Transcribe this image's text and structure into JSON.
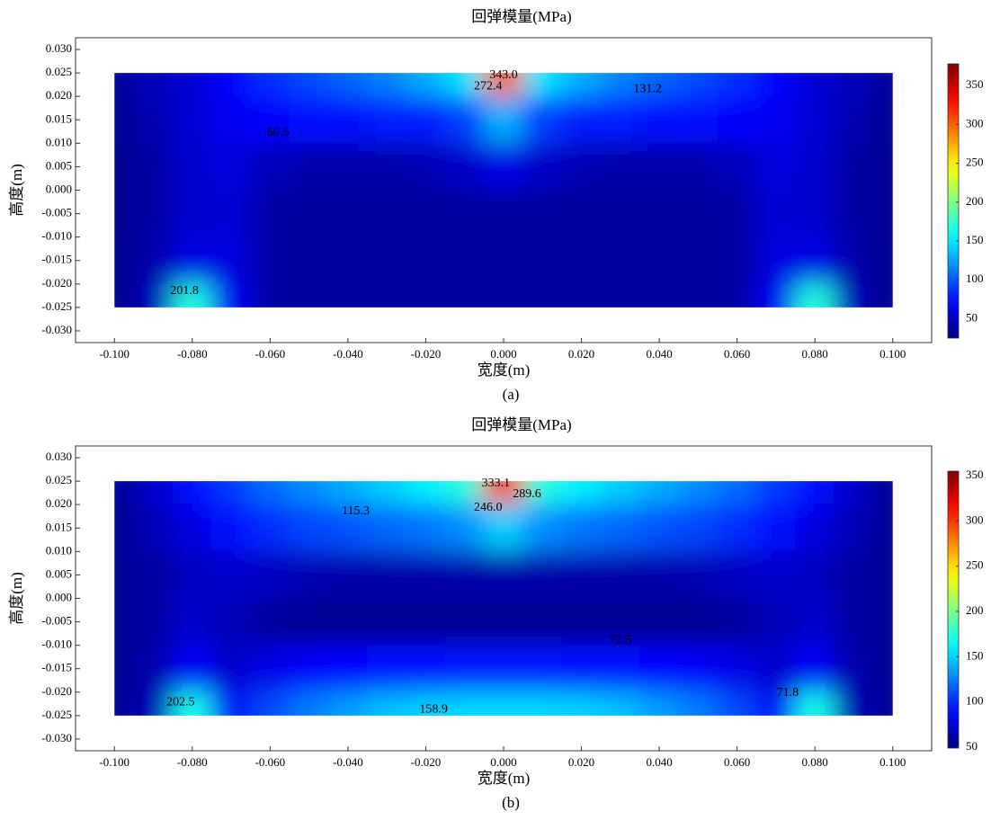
{
  "chart_data": [
    {
      "type": "heatmap",
      "title": "回弹模量(MPa)",
      "xlabel": "宽度(m)",
      "ylabel": "高度(m)",
      "caption": "(a)",
      "colormap": "jet",
      "x": [
        -0.1,
        -0.09,
        -0.08,
        -0.07,
        -0.06,
        -0.05,
        -0.04,
        -0.03,
        -0.02,
        -0.01,
        0,
        0.01,
        0.02,
        0.03,
        0.04,
        0.05,
        0.06,
        0.07,
        0.08,
        0.09,
        0.1
      ],
      "y": [
        0.025,
        0.015,
        0.005,
        -0.005,
        -0.015,
        -0.025
      ],
      "z": [
        [
          35,
          45,
          55,
          70,
          85,
          95,
          105,
          115,
          130,
          150,
          300,
          150,
          130,
          115,
          105,
          95,
          85,
          70,
          55,
          45,
          35
        ],
        [
          32,
          42,
          55,
          65,
          70,
          72,
          75,
          78,
          80,
          90,
          130,
          90,
          80,
          78,
          75,
          72,
          70,
          65,
          55,
          42,
          32
        ],
        [
          30,
          38,
          52,
          58,
          45,
          40,
          40,
          40,
          42,
          50,
          60,
          50,
          42,
          40,
          40,
          40,
          45,
          58,
          52,
          38,
          30
        ],
        [
          30,
          38,
          52,
          55,
          38,
          35,
          35,
          35,
          35,
          35,
          35,
          35,
          35,
          35,
          35,
          35,
          38,
          55,
          52,
          38,
          30
        ],
        [
          30,
          40,
          60,
          58,
          38,
          35,
          35,
          35,
          35,
          35,
          35,
          35,
          35,
          35,
          35,
          35,
          38,
          58,
          60,
          40,
          30
        ],
        [
          30,
          45,
          170,
          65,
          38,
          35,
          35,
          35,
          35,
          35,
          35,
          35,
          35,
          35,
          35,
          35,
          38,
          65,
          170,
          45,
          30
        ]
      ],
      "xlim": [
        -0.11,
        0.11
      ],
      "ylim": [
        -0.0325,
        0.0325
      ],
      "xticks": [
        {
          "value": -0.1,
          "label": "-0.100"
        },
        {
          "value": -0.08,
          "label": "-0.080"
        },
        {
          "value": -0.06,
          "label": "-0.060"
        },
        {
          "value": -0.04,
          "label": "-0.040"
        },
        {
          "value": -0.02,
          "label": "-0.020"
        },
        {
          "value": 0,
          "label": "0.000"
        },
        {
          "value": 0.02,
          "label": "0.020"
        },
        {
          "value": 0.04,
          "label": "0.040"
        },
        {
          "value": 0.06,
          "label": "0.060"
        },
        {
          "value": 0.08,
          "label": "0.080"
        },
        {
          "value": 0.1,
          "label": "0.100"
        }
      ],
      "yticks": [
        {
          "value": 0.03,
          "label": "0.030"
        },
        {
          "value": 0.025,
          "label": "0.025"
        },
        {
          "value": 0.02,
          "label": "0.020"
        },
        {
          "value": 0.015,
          "label": "0.015"
        },
        {
          "value": 0.01,
          "label": "0.010"
        },
        {
          "value": 0.005,
          "label": "0.005"
        },
        {
          "value": 0,
          "label": "0.000"
        },
        {
          "value": -0.005,
          "label": "-0.005"
        },
        {
          "value": -0.01,
          "label": "-0.010"
        },
        {
          "value": -0.015,
          "label": "-0.015"
        },
        {
          "value": -0.02,
          "label": "-0.020"
        },
        {
          "value": -0.025,
          "label": "-0.025"
        },
        {
          "value": -0.03,
          "label": "-0.030"
        }
      ],
      "clim": [
        25,
        378
      ],
      "cticks": [
        50,
        100,
        150,
        200,
        250,
        300,
        350
      ],
      "annotations": [
        {
          "text": "343.0",
          "x": 0.0,
          "y": 0.0245
        },
        {
          "text": "272.4",
          "x": -0.004,
          "y": 0.0221
        },
        {
          "text": "131.2",
          "x": 0.037,
          "y": 0.0215
        },
        {
          "text": "60.6",
          "x": -0.058,
          "y": 0.0122
        },
        {
          "text": "201.8",
          "x": -0.082,
          "y": -0.0215
        }
      ]
    },
    {
      "type": "heatmap",
      "title": "回弹模量(MPa)",
      "xlabel": "宽度(m)",
      "ylabel": "高度(m)",
      "caption": "(b)",
      "colormap": "jet",
      "x": [
        -0.1,
        -0.09,
        -0.08,
        -0.07,
        -0.06,
        -0.05,
        -0.04,
        -0.03,
        -0.02,
        -0.01,
        0,
        0.01,
        0.02,
        0.03,
        0.04,
        0.05,
        0.06,
        0.07,
        0.08,
        0.09,
        0.1
      ],
      "y": [
        0.025,
        0.015,
        0.005,
        -0.005,
        -0.015,
        -0.025
      ],
      "z": [
        [
          55,
          72,
          90,
          105,
          120,
          130,
          140,
          150,
          160,
          175,
          300,
          175,
          160,
          150,
          140,
          130,
          120,
          105,
          90,
          72,
          55
        ],
        [
          55,
          65,
          78,
          90,
          100,
          108,
          112,
          118,
          122,
          130,
          150,
          130,
          122,
          118,
          112,
          108,
          100,
          90,
          78,
          65,
          55
        ],
        [
          55,
          60,
          68,
          72,
          68,
          65,
          62,
          62,
          62,
          62,
          62,
          62,
          62,
          62,
          62,
          65,
          68,
          72,
          68,
          60,
          55
        ],
        [
          55,
          60,
          72,
          65,
          58,
          55,
          55,
          55,
          55,
          55,
          55,
          55,
          55,
          55,
          55,
          55,
          58,
          65,
          72,
          60,
          55
        ],
        [
          55,
          62,
          85,
          72,
          80,
          85,
          88,
          90,
          92,
          93,
          93,
          93,
          92,
          90,
          88,
          85,
          80,
          72,
          85,
          62,
          55
        ],
        [
          55,
          65,
          170,
          85,
          110,
          125,
          135,
          145,
          150,
          152,
          152,
          152,
          150,
          145,
          135,
          125,
          110,
          85,
          170,
          65,
          55
        ]
      ],
      "xlim": [
        -0.11,
        0.11
      ],
      "ylim": [
        -0.0325,
        0.0325
      ],
      "xticks": [
        {
          "value": -0.1,
          "label": "-0.100"
        },
        {
          "value": -0.08,
          "label": "-0.080"
        },
        {
          "value": -0.06,
          "label": "-0.060"
        },
        {
          "value": -0.04,
          "label": "-0.040"
        },
        {
          "value": -0.02,
          "label": "-0.020"
        },
        {
          "value": 0,
          "label": "0.000"
        },
        {
          "value": 0.02,
          "label": "0.020"
        },
        {
          "value": 0.04,
          "label": "0.040"
        },
        {
          "value": 0.06,
          "label": "0.060"
        },
        {
          "value": 0.08,
          "label": "0.080"
        },
        {
          "value": 0.1,
          "label": "0.100"
        }
      ],
      "yticks": [
        {
          "value": 0.03,
          "label": "0.030"
        },
        {
          "value": 0.025,
          "label": "0.025"
        },
        {
          "value": 0.02,
          "label": "0.020"
        },
        {
          "value": 0.015,
          "label": "0.015"
        },
        {
          "value": 0.01,
          "label": "0.010"
        },
        {
          "value": 0.005,
          "label": "0.005"
        },
        {
          "value": 0,
          "label": "0.000"
        },
        {
          "value": -0.005,
          "label": "-0.005"
        },
        {
          "value": -0.01,
          "label": "-0.010"
        },
        {
          "value": -0.015,
          "label": "-0.015"
        },
        {
          "value": -0.02,
          "label": "-0.020"
        },
        {
          "value": -0.025,
          "label": "-0.025"
        },
        {
          "value": -0.03,
          "label": "-0.030"
        }
      ],
      "clim": [
        49,
        355
      ],
      "cticks": [
        50,
        100,
        150,
        200,
        250,
        300,
        350
      ],
      "annotations": [
        {
          "text": "333.1",
          "x": -0.002,
          "y": 0.0245
        },
        {
          "text": "289.6",
          "x": 0.006,
          "y": 0.0222
        },
        {
          "text": "246.0",
          "x": -0.004,
          "y": 0.0193
        },
        {
          "text": "115.3",
          "x": -0.038,
          "y": 0.0185
        },
        {
          "text": "72.5",
          "x": 0.03,
          "y": -0.009
        },
        {
          "text": "158.9",
          "x": -0.018,
          "y": -0.0237
        },
        {
          "text": "202.5",
          "x": -0.083,
          "y": -0.0222
        },
        {
          "text": "71.8",
          "x": 0.073,
          "y": -0.0202
        }
      ]
    }
  ]
}
